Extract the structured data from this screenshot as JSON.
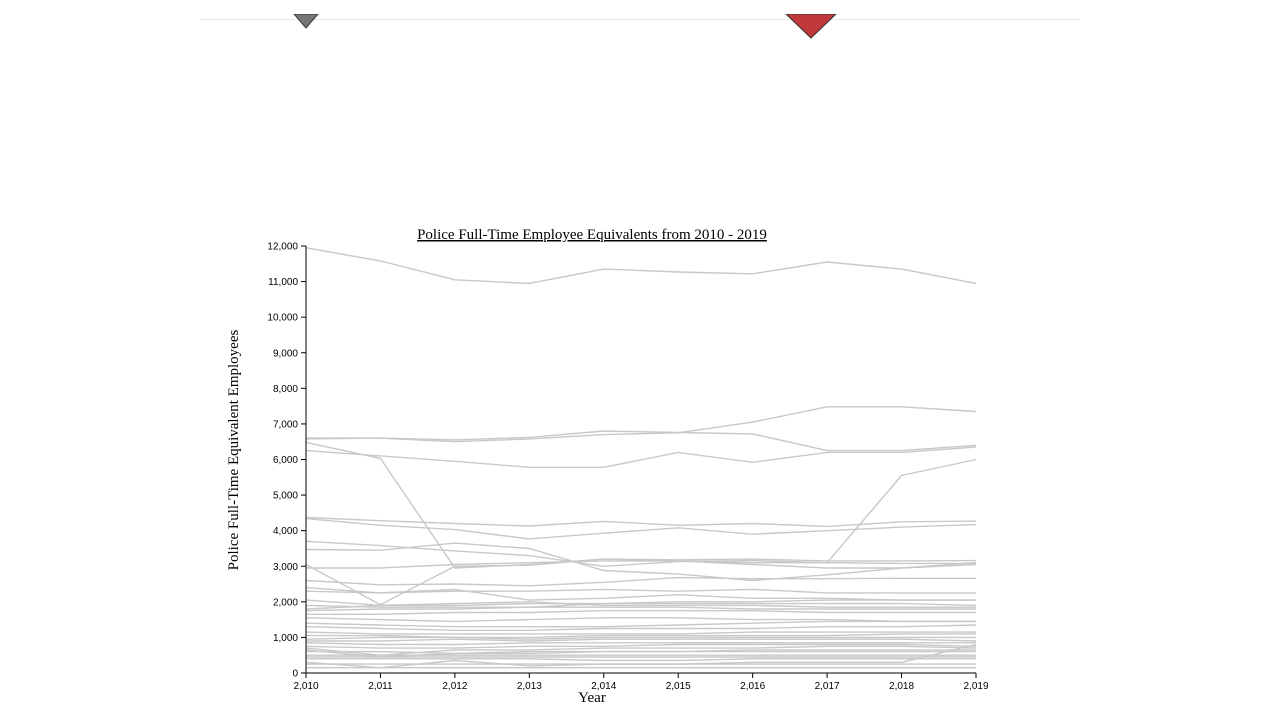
{
  "markers": [
    {
      "name": "gray-diamond-marker",
      "color": "#777777"
    },
    {
      "name": "red-diamond-marker",
      "color": "#c0393b"
    }
  ],
  "chart_data": {
    "type": "line",
    "title": "Police Full-Time Employee Equivalents from 2010 - 2019",
    "xlabel": "Year",
    "ylabel": "Police Full-Time Equivalent Employees",
    "x": [
      2010,
      2011,
      2012,
      2013,
      2014,
      2015,
      2016,
      2017,
      2018,
      2019
    ],
    "x_tick_labels": [
      "2,010",
      "2,011",
      "2,012",
      "2,013",
      "2,014",
      "2,015",
      "2,016",
      "2,017",
      "2,018",
      "2,019"
    ],
    "xlim": [
      2010,
      2019
    ],
    "ylim": [
      0,
      12000
    ],
    "y_ticks": [
      0,
      1000,
      2000,
      3000,
      4000,
      5000,
      6000,
      7000,
      8000,
      9000,
      10000,
      11000,
      12000
    ],
    "y_tick_labels": [
      "0",
      "1,000",
      "2,000",
      "3,000",
      "4,000",
      "5,000",
      "6,000",
      "7,000",
      "8,000",
      "9,000",
      "10,000",
      "11,000",
      "12,000"
    ],
    "grid": false,
    "line_color": "#c8c8c8",
    "series": [
      {
        "values": [
          11950,
          11580,
          11050,
          10950,
          11350,
          11270,
          11220,
          11550,
          11350,
          10950
        ]
      },
      {
        "values": [
          6580,
          6600,
          6500,
          6580,
          6700,
          6750,
          7050,
          7480,
          7480,
          7350
        ]
      },
      {
        "values": [
          6600,
          6600,
          6550,
          6620,
          6800,
          6760,
          6720,
          6250,
          6250,
          6400
        ]
      },
      {
        "values": [
          6480,
          6030,
          2950,
          3050,
          3200,
          3150,
          3100,
          3100,
          5550,
          6000
        ]
      },
      {
        "values": [
          6250,
          6100,
          5950,
          5780,
          5780,
          6200,
          5920,
          6200,
          6200,
          6350
        ]
      },
      {
        "values": [
          4370,
          4280,
          4200,
          4130,
          4260,
          4150,
          4200,
          4120,
          4250,
          4270
        ]
      },
      {
        "values": [
          4340,
          4150,
          4030,
          3770,
          3930,
          4080,
          3900,
          4000,
          4100,
          4170
        ]
      },
      {
        "values": [
          3700,
          3580,
          3430,
          3300,
          3000,
          3130,
          3160,
          3100,
          3080,
          3080
        ]
      },
      {
        "values": [
          3470,
          3450,
          3650,
          3500,
          2880,
          2780,
          2600,
          2760,
          2950,
          3100
        ]
      },
      {
        "values": [
          3050,
          1920,
          3000,
          3030,
          3200,
          3180,
          3200,
          3150,
          3150,
          3160
        ]
      },
      {
        "values": [
          2950,
          2950,
          3050,
          3100,
          3150,
          3150,
          3050,
          2950,
          2950,
          3050
        ]
      },
      {
        "values": [
          2600,
          2480,
          2500,
          2450,
          2550,
          2680,
          2650,
          2650,
          2660,
          2660
        ]
      },
      {
        "values": [
          2400,
          2250,
          2350,
          2050,
          2100,
          2200,
          2100,
          2100,
          2050,
          2050
        ]
      },
      {
        "values": [
          2300,
          2250,
          2300,
          2300,
          2350,
          2300,
          2350,
          2250,
          2250,
          2250
        ]
      },
      {
        "values": [
          2050,
          1900,
          1900,
          1950,
          1950,
          2000,
          2000,
          2050,
          2050,
          2050
        ]
      },
      {
        "values": [
          1900,
          1850,
          1850,
          1850,
          1950,
          1950,
          1950,
          1950,
          1950,
          1900
        ]
      },
      {
        "values": [
          1800,
          1900,
          1950,
          2000,
          1900,
          1900,
          1900,
          1850,
          1850,
          1850
        ]
      },
      {
        "values": [
          1750,
          1800,
          1800,
          1850,
          1850,
          1850,
          1800,
          1800,
          1800,
          1800
        ]
      },
      {
        "values": [
          1650,
          1650,
          1700,
          1700,
          1750,
          1750,
          1750,
          1700,
          1700,
          1700
        ]
      },
      {
        "values": [
          1550,
          1500,
          1450,
          1500,
          1550,
          1550,
          1500,
          1500,
          1450,
          1450
        ]
      },
      {
        "values": [
          1400,
          1350,
          1300,
          1300,
          1300,
          1350,
          1400,
          1450,
          1450,
          1450
        ]
      },
      {
        "values": [
          1300,
          1250,
          1200,
          1200,
          1250,
          1250,
          1250,
          1300,
          1300,
          1350
        ]
      },
      {
        "values": [
          1150,
          1100,
          1100,
          1100,
          1100,
          1100,
          1150,
          1150,
          1150,
          1150
        ]
      },
      {
        "values": [
          1050,
          1050,
          1000,
          1000,
          1050,
          1050,
          1050,
          1050,
          1100,
          1100
        ]
      },
      {
        "values": [
          950,
          1000,
          1000,
          950,
          1000,
          1000,
          1000,
          1000,
          1000,
          1000
        ]
      },
      {
        "values": [
          900,
          900,
          950,
          900,
          950,
          950,
          950,
          950,
          950,
          900
        ]
      },
      {
        "values": [
          850,
          800,
          800,
          850,
          850,
          850,
          850,
          850,
          850,
          850
        ]
      },
      {
        "values": [
          750,
          700,
          700,
          750,
          750,
          800,
          800,
          800,
          800,
          750
        ]
      },
      {
        "values": [
          700,
          500,
          650,
          650,
          700,
          700,
          700,
          750,
          750,
          700
        ]
      },
      {
        "values": [
          650,
          450,
          550,
          600,
          600,
          600,
          650,
          650,
          650,
          650
        ]
      },
      {
        "values": [
          600,
          600,
          550,
          550,
          600,
          600,
          600,
          600,
          600,
          600
        ]
      },
      {
        "values": [
          500,
          500,
          500,
          500,
          500,
          500,
          500,
          500,
          500,
          500
        ]
      },
      {
        "values": [
          450,
          450,
          450,
          450,
          450,
          450,
          450,
          450,
          450,
          450
        ]
      },
      {
        "values": [
          400,
          400,
          400,
          400,
          350,
          350,
          400,
          400,
          400,
          400
        ]
      },
      {
        "values": [
          300,
          150,
          350,
          200,
          250,
          250,
          300,
          300,
          300,
          800
        ]
      },
      {
        "values": [
          250,
          250,
          250,
          250,
          250,
          250,
          250,
          250,
          250,
          250
        ]
      },
      {
        "values": [
          150,
          150,
          150,
          150,
          150,
          150,
          150,
          150,
          150,
          150
        ]
      }
    ]
  }
}
